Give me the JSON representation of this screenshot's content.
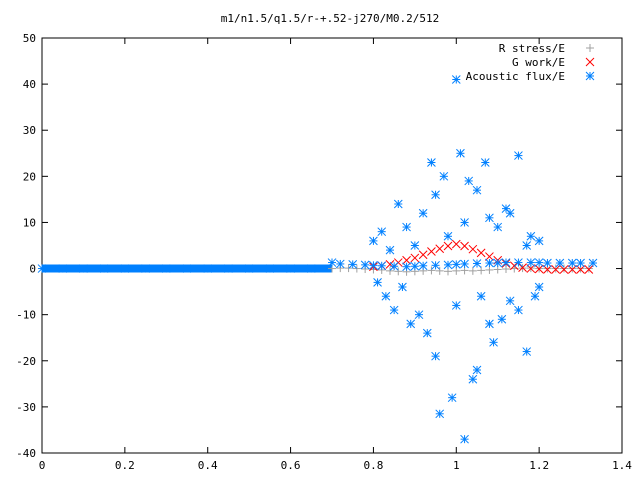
{
  "chart_data": {
    "type": "scatter",
    "title": "m1/n1.5/q1.5/r-+.52-j270/M0.2/512",
    "xlabel": "",
    "ylabel": "",
    "xlim": [
      0,
      1.4
    ],
    "ylim": [
      -40,
      50
    ],
    "xticks": [
      0,
      0.2,
      0.4,
      0.6,
      0.8,
      1,
      1.2,
      1.4
    ],
    "yticks": [
      -40,
      -30,
      -20,
      -10,
      0,
      10,
      20,
      30,
      40,
      50
    ],
    "grid": false,
    "legend_position": "top-right",
    "series": [
      {
        "name": "R stress/E",
        "marker": "+",
        "color": "#a0a0a0",
        "x": [
          0.7,
          0.72,
          0.74,
          0.76,
          0.78,
          0.8,
          0.82,
          0.84,
          0.86,
          0.88,
          0.9,
          0.92,
          0.94,
          0.96,
          0.98,
          1.0,
          1.02,
          1.04,
          1.06,
          1.08,
          1.1,
          1.12,
          1.14,
          1.16,
          1.18,
          1.2,
          1.22,
          1.24,
          1.26,
          1.28,
          1.3,
          1.32
        ],
        "y": [
          0.0,
          0.1,
          0.1,
          0.0,
          -0.1,
          -0.2,
          -0.3,
          -0.5,
          -0.6,
          -0.7,
          -0.6,
          -0.5,
          -0.4,
          -0.5,
          -0.6,
          -0.5,
          -0.4,
          -0.5,
          -0.4,
          -0.3,
          -0.2,
          -0.1,
          0.0,
          0.1,
          0.1,
          0.0,
          0.0,
          0.0,
          0.0,
          0.0,
          0.0,
          0.0
        ]
      },
      {
        "name": "G work/E",
        "marker": "x",
        "color": "#ff0000",
        "x": [
          0.8,
          0.82,
          0.84,
          0.86,
          0.88,
          0.9,
          0.92,
          0.94,
          0.96,
          0.98,
          1.0,
          1.02,
          1.04,
          1.06,
          1.08,
          1.1,
          1.12,
          1.14,
          1.16,
          1.18,
          1.2,
          1.22,
          1.24,
          1.26,
          1.28,
          1.3,
          1.32
        ],
        "y": [
          0.4,
          0.6,
          0.9,
          1.3,
          1.8,
          2.3,
          3.0,
          3.7,
          4.3,
          4.9,
          5.3,
          4.9,
          4.2,
          3.4,
          2.6,
          1.8,
          1.1,
          0.6,
          0.2,
          0.0,
          -0.1,
          -0.2,
          -0.2,
          -0.2,
          -0.2,
          -0.2,
          -0.2
        ]
      },
      {
        "name": "Acoustic flux/E",
        "marker": "*",
        "color": "#0080ff",
        "x": [
          0.0,
          0.05,
          0.1,
          0.15,
          0.2,
          0.25,
          0.3,
          0.35,
          0.4,
          0.45,
          0.5,
          0.55,
          0.6,
          0.65,
          0.7,
          0.72,
          0.75,
          0.78,
          0.8,
          0.82,
          0.85,
          0.88,
          0.9,
          0.92,
          0.95,
          0.98,
          1.0,
          1.02,
          1.05,
          1.08,
          1.1,
          1.12,
          1.15,
          1.18,
          1.2,
          1.22,
          1.25,
          1.28,
          1.3,
          1.33,
          0.8,
          0.82,
          0.84,
          0.86,
          0.88,
          0.9,
          0.92,
          0.94,
          0.95,
          0.97,
          0.98,
          1.0,
          1.01,
          1.02,
          1.03,
          1.05,
          1.07,
          1.08,
          1.1,
          1.12,
          1.13,
          1.15,
          1.17,
          1.18,
          1.2,
          0.81,
          0.83,
          0.85,
          0.87,
          0.89,
          0.91,
          0.93,
          0.95,
          0.96,
          0.99,
          1.0,
          1.02,
          1.04,
          1.05,
          1.06,
          1.08,
          1.09,
          1.11,
          1.13,
          1.15,
          1.17,
          1.19,
          1.2
        ],
        "y": [
          0.0,
          0.0,
          0.0,
          0.0,
          0.0,
          0.0,
          0.0,
          0.0,
          0.0,
          0.0,
          0.0,
          0.0,
          0.0,
          0.0,
          1.3,
          1.0,
          0.9,
          0.8,
          0.7,
          0.6,
          0.5,
          0.4,
          0.5,
          0.6,
          0.7,
          0.8,
          0.9,
          1.0,
          1.1,
          1.2,
          1.2,
          1.3,
          1.3,
          1.3,
          1.3,
          1.2,
          1.2,
          1.2,
          1.2,
          1.2,
          6.0,
          8.0,
          4.0,
          14.0,
          9.0,
          5.0,
          12.0,
          23.0,
          16.0,
          20.0,
          7.0,
          41.0,
          25.0,
          10.0,
          19.0,
          17.0,
          23.0,
          11.0,
          9.0,
          13.0,
          12.0,
          24.5,
          5.0,
          7.0,
          6.0,
          -3.0,
          -6.0,
          -9.0,
          -4.0,
          -12.0,
          -10.0,
          -14.0,
          -19.0,
          -31.5,
          -28.0,
          -8.0,
          -37.0,
          -24.0,
          -22.0,
          -6.0,
          -12.0,
          -16.0,
          -11.0,
          -7.0,
          -9.0,
          -18.0,
          -6.0,
          -4.0
        ]
      }
    ]
  }
}
